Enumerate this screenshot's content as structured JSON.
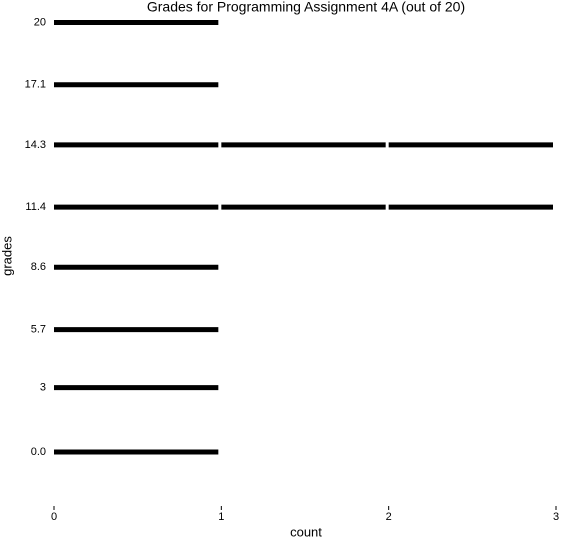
{
  "chart_data": {
    "type": "bar",
    "orientation": "horizontal",
    "title": "Grades for Programming Assignment 4A (out of 20)",
    "x_label": "count",
    "y_label": "grades",
    "y": [
      20,
      17.1,
      14.3,
      11.4,
      8.6,
      5.7,
      3,
      0
    ],
    "values": [
      1,
      1,
      3,
      3,
      1,
      1,
      1,
      1
    ],
    "color": "#000000",
    "xlim": [
      0,
      3
    ],
    "xticks": [
      0,
      1,
      2,
      3
    ],
    "ylim": [
      -2.7,
      20.3
    ],
    "yticks": [
      {
        "value": 0,
        "label": "0.0"
      },
      3,
      5.7,
      8.6,
      11.4,
      14.3,
      17.1,
      20
    ],
    "grid": false
  }
}
